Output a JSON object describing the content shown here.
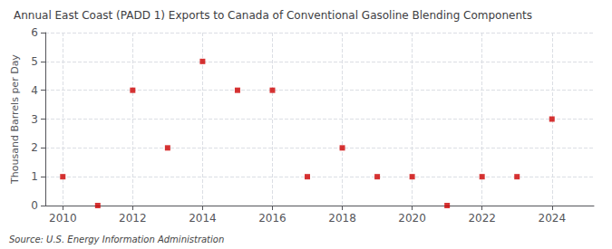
{
  "chart_data": {
    "type": "scatter",
    "title": "Annual East Coast (PADD 1) Exports to Canada of Conventional Gasoline Blending Components",
    "ylabel": "Thousand Barrels per Day",
    "source": "Source: U.S. Energy Information Administration",
    "x": [
      2010,
      2011,
      2012,
      2013,
      2014,
      2015,
      2016,
      2017,
      2018,
      2019,
      2020,
      2021,
      2022,
      2023,
      2024
    ],
    "values": [
      1,
      0,
      4,
      2,
      5,
      4,
      4,
      1,
      2,
      1,
      1,
      0,
      1,
      1,
      3
    ],
    "color": "#cc0000",
    "marker": "square",
    "xlim": [
      2009.5,
      2025.2
    ],
    "xticks": [
      2010,
      2012,
      2014,
      2016,
      2018,
      2020,
      2022,
      2024
    ],
    "ylim": [
      0,
      6
    ],
    "yticks": [
      0,
      1,
      2,
      3,
      4,
      5,
      6
    ],
    "grid": true
  }
}
